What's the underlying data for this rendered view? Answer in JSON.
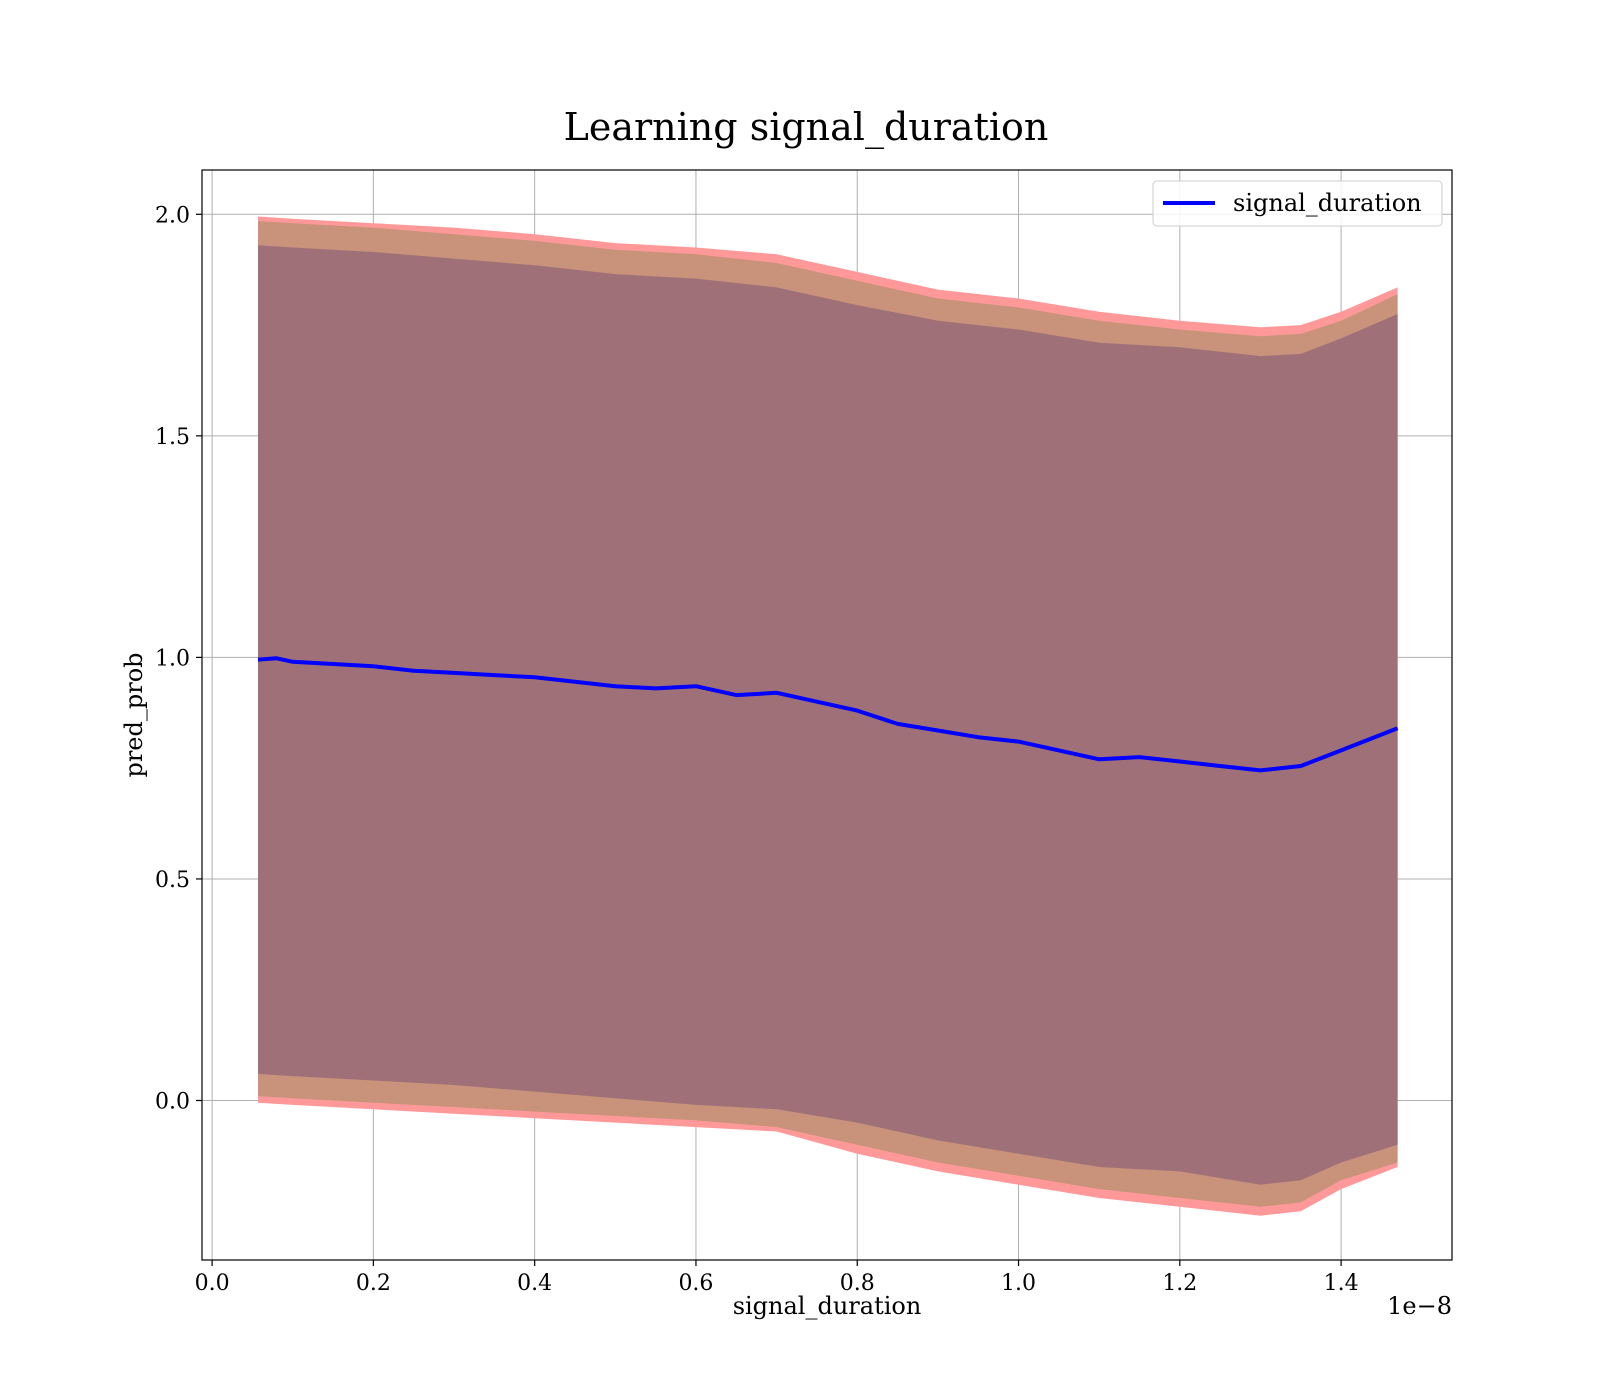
{
  "chart_data": {
    "type": "area",
    "title": "Learning signal_duration",
    "xlabel": "signal_duration",
    "ylabel": "pred_prob",
    "x_offset_label": "1e−8",
    "xlim": [
      -0.0125,
      1.5375
    ],
    "ylim": [
      -0.36,
      2.1
    ],
    "grid": true,
    "legend_placement": "top-right",
    "x_ticks": [
      0.0,
      0.2,
      0.4,
      0.6,
      0.8,
      1.0,
      1.2,
      1.4
    ],
    "x_tick_labels": [
      "0.0",
      "0.2",
      "0.4",
      "0.6",
      "0.8",
      "1.0",
      "1.2",
      "1.4"
    ],
    "y_ticks": [
      0.0,
      0.5,
      1.0,
      1.5,
      2.0
    ],
    "y_tick_labels": [
      "0.0",
      "0.5",
      "1.0",
      "1.5",
      "2.0"
    ],
    "colors": {
      "line": "#0000ff",
      "outer_band": "#ff9999",
      "middle_band": "#c8937a",
      "inner_band": "#a07078"
    },
    "series": [
      {
        "name": "signal_duration",
        "x": [
          0.057,
          0.08,
          0.1,
          0.15,
          0.2,
          0.25,
          0.3,
          0.35,
          0.4,
          0.45,
          0.5,
          0.55,
          0.6,
          0.65,
          0.7,
          0.75,
          0.8,
          0.85,
          0.9,
          0.95,
          1.0,
          1.05,
          1.1,
          1.15,
          1.2,
          1.25,
          1.3,
          1.35,
          1.4,
          1.47
        ],
        "y": [
          0.995,
          0.998,
          0.99,
          0.985,
          0.98,
          0.97,
          0.965,
          0.96,
          0.955,
          0.945,
          0.935,
          0.93,
          0.935,
          0.915,
          0.92,
          0.9,
          0.88,
          0.85,
          0.835,
          0.82,
          0.81,
          0.79,
          0.77,
          0.775,
          0.765,
          0.755,
          0.745,
          0.755,
          0.79,
          0.84
        ]
      }
    ],
    "bands": [
      {
        "x": [
          0.057,
          0.1,
          0.2,
          0.3,
          0.4,
          0.5,
          0.6,
          0.7,
          0.8,
          0.9,
          1.0,
          1.1,
          1.2,
          1.3,
          1.35,
          1.4,
          1.47
        ],
        "lower": [
          -0.005,
          -0.01,
          -0.02,
          -0.03,
          -0.04,
          -0.05,
          -0.06,
          -0.07,
          -0.12,
          -0.16,
          -0.19,
          -0.22,
          -0.24,
          -0.26,
          -0.25,
          -0.2,
          -0.15
        ],
        "upper": [
          1.995,
          1.99,
          1.98,
          1.97,
          1.955,
          1.935,
          1.925,
          1.91,
          1.87,
          1.83,
          1.81,
          1.78,
          1.76,
          1.745,
          1.75,
          1.78,
          1.835
        ]
      },
      {
        "x": [
          0.057,
          0.1,
          0.2,
          0.3,
          0.4,
          0.5,
          0.6,
          0.7,
          0.8,
          0.9,
          1.0,
          1.1,
          1.2,
          1.3,
          1.35,
          1.4,
          1.47
        ],
        "lower": [
          0.01,
          0.005,
          -0.005,
          -0.015,
          -0.025,
          -0.035,
          -0.045,
          -0.06,
          -0.1,
          -0.14,
          -0.17,
          -0.2,
          -0.22,
          -0.24,
          -0.23,
          -0.18,
          -0.14
        ],
        "upper": [
          1.985,
          1.98,
          1.97,
          1.955,
          1.94,
          1.92,
          1.91,
          1.89,
          1.85,
          1.81,
          1.79,
          1.76,
          1.74,
          1.725,
          1.73,
          1.76,
          1.82
        ]
      },
      {
        "x": [
          0.057,
          0.1,
          0.2,
          0.3,
          0.4,
          0.5,
          0.6,
          0.7,
          0.8,
          0.9,
          1.0,
          1.1,
          1.2,
          1.3,
          1.35,
          1.4,
          1.47
        ],
        "lower": [
          0.06,
          0.055,
          0.045,
          0.035,
          0.02,
          0.005,
          -0.01,
          -0.02,
          -0.05,
          -0.09,
          -0.12,
          -0.15,
          -0.16,
          -0.19,
          -0.18,
          -0.14,
          -0.1
        ],
        "upper": [
          1.93,
          1.925,
          1.915,
          1.9,
          1.885,
          1.865,
          1.855,
          1.835,
          1.795,
          1.76,
          1.74,
          1.71,
          1.7,
          1.68,
          1.685,
          1.72,
          1.775
        ]
      }
    ]
  }
}
